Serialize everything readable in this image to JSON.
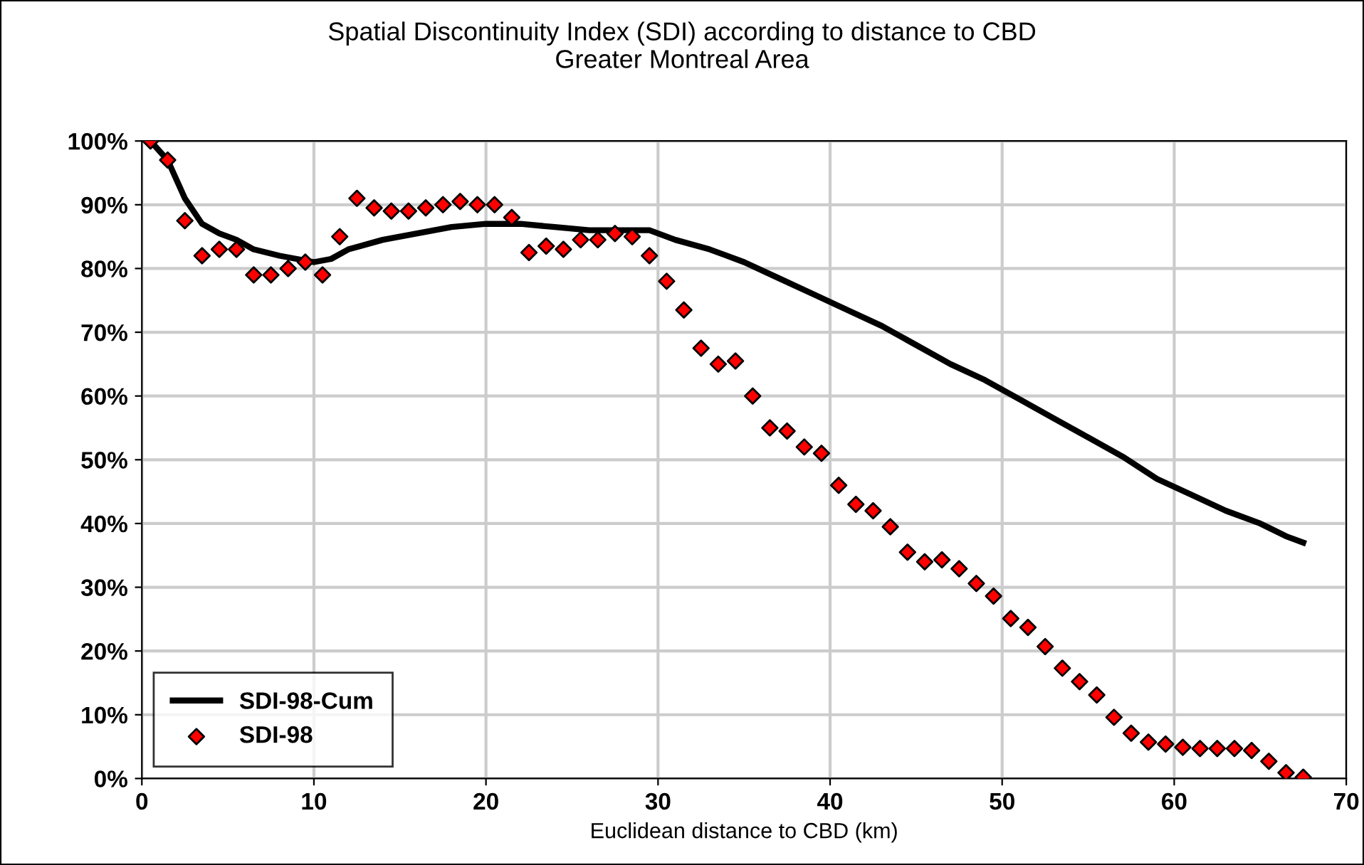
{
  "chart_data": {
    "type": "scatter",
    "title": "Spatial Discontinuity Index (SDI) according to distance to CBD\nGreater Montreal Area",
    "xlabel": "Euclidean distance to CBD (km)",
    "xlim": [
      0,
      70
    ],
    "xticks": [
      0,
      10,
      20,
      30,
      40,
      50,
      60,
      70
    ],
    "ylim": [
      0,
      100
    ],
    "yticks": [
      {
        "value": 0,
        "label": "0%"
      },
      {
        "value": 10,
        "label": "10%"
      },
      {
        "value": 20,
        "label": "20%"
      },
      {
        "value": 30,
        "label": "30%"
      },
      {
        "value": 40,
        "label": "40%"
      },
      {
        "value": 50,
        "label": "50%"
      },
      {
        "value": 60,
        "label": "60%"
      },
      {
        "value": 70,
        "label": "70%"
      },
      {
        "value": 80,
        "label": "80%"
      },
      {
        "value": 90,
        "label": "90%"
      },
      {
        "value": 100,
        "label": "100%"
      }
    ],
    "grid": true,
    "legend": "bottom left",
    "series": [
      {
        "name": "SDI-98-Cum",
        "type": "line",
        "color": "#000000",
        "marker": "none",
        "line_style": "solid",
        "x": [
          0.5,
          1.5,
          2.5,
          3.5,
          4.5,
          5.5,
          6.5,
          8,
          10,
          11,
          12,
          14,
          16,
          18,
          20,
          22,
          24,
          26,
          28,
          29.5,
          31,
          33,
          35,
          37,
          39,
          41,
          43,
          45,
          47,
          49,
          51,
          53,
          55,
          57,
          59,
          61,
          63,
          65,
          66.5,
          67.5
        ],
        "values": [
          100,
          97,
          91,
          87,
          85.5,
          84.5,
          83,
          82,
          81,
          81.5,
          83,
          84.5,
          85.5,
          86.5,
          87,
          87,
          86.5,
          86,
          86,
          86,
          84.5,
          83,
          81,
          78.5,
          76,
          73.5,
          71,
          68,
          65,
          62.5,
          59.5,
          56.5,
          53.5,
          50.5,
          47,
          44.5,
          42,
          40,
          38,
          37
        ]
      },
      {
        "name": "SDI-98",
        "color": "#ff0000",
        "marker": "diamond",
        "x": [
          0.5,
          1.5,
          2.5,
          3.5,
          4.5,
          5.5,
          6.5,
          7.5,
          8.5,
          9.5,
          10.5,
          11.5,
          12.5,
          13.5,
          14.5,
          15.5,
          16.5,
          17.5,
          18.5,
          19.5,
          20.5,
          21.5,
          22.5,
          23.5,
          24.5,
          25.5,
          26.5,
          27.5,
          28.5,
          29.5,
          30.5,
          31.5,
          32.5,
          33.5,
          34.5,
          35.5,
          36.5,
          37.5,
          38.5,
          39.5,
          40.5,
          41.5,
          42.5,
          43.5,
          44.5,
          45.5,
          46.5,
          47.5,
          48.5,
          49.5,
          50.5,
          51.5,
          52.5,
          53.5,
          54.5,
          55.5,
          56.5,
          57.5,
          58.5,
          59.5,
          60.5,
          61.5,
          62.5,
          63.5,
          64.5,
          65.5,
          66.5,
          67.5
        ],
        "values": [
          100,
          97,
          87.5,
          82,
          83,
          83,
          79,
          79,
          80,
          81,
          79,
          85,
          91,
          89.5,
          89,
          89,
          89.5,
          90,
          90.5,
          90,
          90,
          88,
          82.5,
          83.5,
          83,
          84.5,
          84.5,
          85.5,
          85,
          82,
          78,
          73.5,
          67.5,
          65,
          65.5,
          60,
          55,
          54.5,
          52,
          51,
          46,
          43,
          42,
          39.5,
          35.5,
          34,
          34.3,
          32.9,
          30.6,
          28.6,
          25.1,
          23.7,
          20.7,
          17.3,
          15.2,
          13.1,
          9.6,
          7.1,
          5.7,
          5.4,
          4.9,
          4.7,
          4.7,
          4.7,
          4.4,
          2.7,
          0.9,
          0.2
        ]
      }
    ]
  }
}
